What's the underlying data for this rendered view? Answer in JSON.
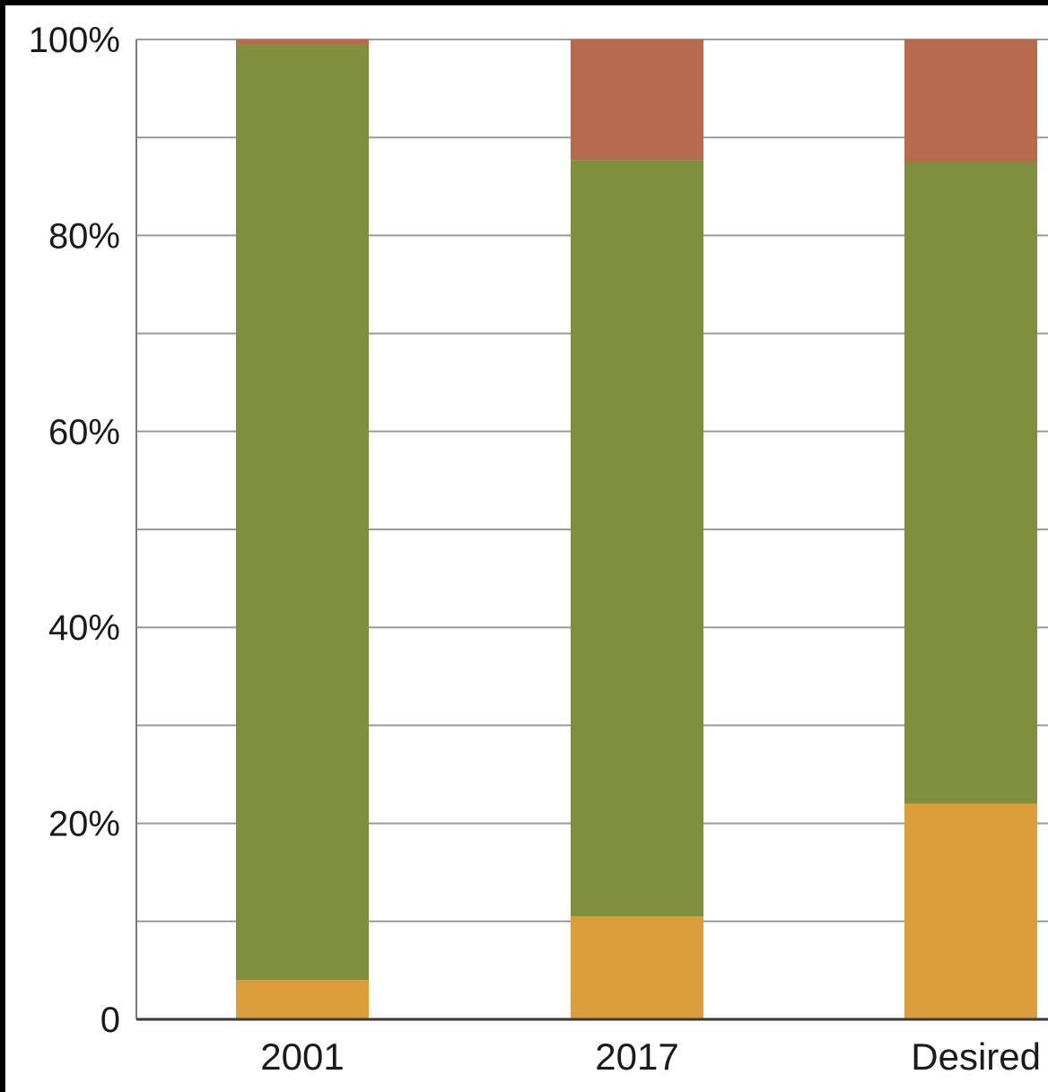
{
  "chart_data": {
    "type": "bar",
    "stacked": true,
    "categories": [
      "2001",
      "2017",
      "Desired"
    ],
    "series": [
      {
        "values": [
          4,
          10.5,
          22
        ],
        "color": "#dc9d3b"
      },
      {
        "values": [
          95.5,
          77.2,
          65.5
        ],
        "color": "#7f8f3d"
      },
      {
        "values": [
          0.5,
          12.3,
          12.5
        ],
        "color": "#b86a4c"
      }
    ],
    "ylim": [
      0,
      100
    ],
    "yticks": [
      {
        "value": 0,
        "label": "0"
      },
      {
        "value": 20,
        "label": "20%"
      },
      {
        "value": 40,
        "label": "40%"
      },
      {
        "value": 60,
        "label": "60%"
      },
      {
        "value": 80,
        "label": "80%"
      },
      {
        "value": 100,
        "label": "100%"
      }
    ],
    "minor_gridlines": [
      10,
      30,
      50,
      70,
      90
    ],
    "grid": true,
    "legend": "none",
    "title": "",
    "xlabel": "",
    "ylabel": ""
  }
}
